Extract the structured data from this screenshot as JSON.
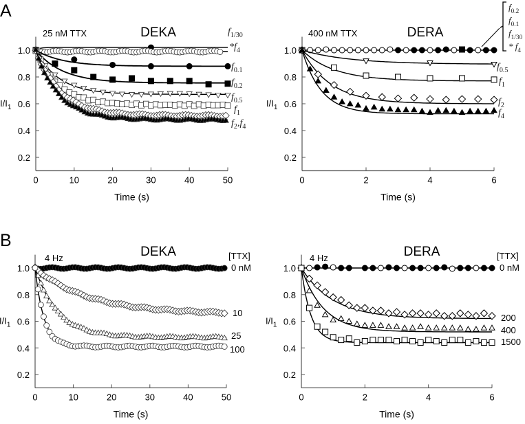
{
  "figure": {
    "panel_letters": [
      "A",
      "B"
    ]
  },
  "chart_data": [
    {
      "id": "A-DEKA",
      "type": "scatter",
      "title": "DEKA",
      "condition": "25 nM TTX",
      "xlabel": "Time (s)",
      "ylabel": "I/I",
      "ylabel_sub": "1",
      "xlim": [
        0,
        50
      ],
      "ylim": [
        0.1,
        1.1
      ],
      "xticks": [
        "0",
        "10",
        "20",
        "30",
        "40",
        "50"
      ],
      "xtick_values": [
        0,
        10,
        20,
        30,
        40,
        50
      ],
      "yticks": [
        "0.2",
        "0.4",
        "0.6",
        "0.8",
        "1.0"
      ],
      "ytick_values": [
        0.2,
        0.4,
        0.6,
        0.8,
        1.0
      ],
      "series": [
        {
          "name": "f1/30",
          "label": "f",
          "label_sub": "1/30",
          "marker": "circle-filled",
          "fit": {
            "plateau": 1.02,
            "tau": 1
          },
          "x": [
            0,
            30
          ],
          "y": [
            1.0,
            1.02
          ]
        },
        {
          "name": "*f4",
          "label": "*f",
          "label_sub": "4",
          "marker": "circle-open",
          "fit": {
            "plateau": 0.99,
            "tau": 1
          },
          "dense_step": 0.75,
          "x_end": 48
        },
        {
          "name": "f0.1",
          "label": "f",
          "label_sub": "0.1",
          "marker": "circle-filled",
          "fit": {
            "plateau": 0.88,
            "tau": 7
          },
          "x": [
            0,
            10,
            20,
            30,
            40,
            50
          ],
          "y": [
            1.0,
            0.93,
            0.89,
            0.88,
            0.88,
            0.88
          ]
        },
        {
          "name": "f0.2",
          "label": "f",
          "label_sub": "0.2",
          "marker": "square-filled",
          "fit": {
            "plateau": 0.755,
            "tau": 7
          },
          "x": [
            0,
            5,
            10,
            15,
            20,
            25,
            30,
            35,
            40,
            45,
            50
          ],
          "y": [
            1.0,
            0.9,
            0.85,
            0.8,
            0.78,
            0.79,
            0.77,
            0.77,
            0.77,
            0.745,
            0.75
          ]
        },
        {
          "name": "f0.5",
          "label": "f",
          "label_sub": "0.5",
          "marker": "tri-down-open",
          "fit": {
            "plateau": 0.67,
            "tau": 6
          },
          "dense_step": 2.5,
          "x_end": 50
        },
        {
          "name": "f1",
          "label": "f",
          "label_sub": "1",
          "marker": "square-open",
          "fit": {
            "plateau": 0.59,
            "tau": 6
          },
          "dense_step": 1.25,
          "x_end": 50
        },
        {
          "name": "f2",
          "label": "f",
          "label_sub": "2",
          "label2": "f",
          "label2_sub": "4",
          "marker": "diamond-open",
          "fit": {
            "plateau": 0.51,
            "tau": 6.5
          },
          "dense_step": 0.75,
          "x_end": 50
        },
        {
          "name": "f4",
          "marker": "tri-up-filled",
          "fit": {
            "plateau": 0.48,
            "tau": 6
          },
          "dense_step": 0.75,
          "x_end": 50
        }
      ]
    },
    {
      "id": "A-DERA",
      "type": "scatter",
      "title": "DERA",
      "condition": "400 nM TTX",
      "xlabel": "Time (s)",
      "ylabel": "I/I",
      "ylabel_sub": "1",
      "xlim": [
        0,
        6
      ],
      "ylim": [
        0.1,
        1.1
      ],
      "xticks": [
        "0",
        "2",
        "4",
        "6"
      ],
      "xtick_values": [
        0,
        2,
        4,
        6
      ],
      "yticks": [
        "0.2",
        "0.4",
        "0.6",
        "0.8",
        "1.0"
      ],
      "ytick_values": [
        0.2,
        0.4,
        0.6,
        0.8,
        1.0
      ],
      "bracket_labels": [
        {
          "label": "f",
          "label_sub": "0.2"
        },
        {
          "label": "f",
          "label_sub": "0.1"
        },
        {
          "label": "f",
          "label_sub": "1/30"
        },
        {
          "label": "* f",
          "label_sub": "4"
        }
      ],
      "series": [
        {
          "name": "flat-open",
          "marker": "circle-open",
          "fit": {
            "plateau": 1.0,
            "tau": 1
          },
          "x": [
            0,
            0.25,
            0.5,
            0.75,
            1,
            1.25,
            1.5,
            1.75,
            2,
            2.25,
            2.5,
            2.75,
            3.25,
            4,
            4.75,
            5.5
          ],
          "y": [
            1,
            1,
            1,
            1.005,
            1,
            1,
            1,
            1,
            1,
            1,
            1,
            1.005,
            1,
            1,
            1,
            1
          ]
        },
        {
          "name": "flat-filled",
          "marker": "circle-filled",
          "x": [
            3,
            3.5,
            3.75,
            4.25,
            4.5,
            5.25,
            5.75,
            6
          ],
          "y": [
            1,
            1,
            1,
            1,
            1.005,
            1,
            1,
            1
          ]
        },
        {
          "name": "flat-square",
          "marker": "square-filled",
          "x": [
            5
          ],
          "y": [
            1.005
          ]
        },
        {
          "name": "f0.5",
          "label": "f",
          "label_sub": "0.5",
          "marker": "tri-down-open",
          "fit": {
            "plateau": 0.895,
            "tau": 1.5
          },
          "x": [
            0,
            2,
            4,
            6
          ],
          "y": [
            1.0,
            0.92,
            0.905,
            0.895
          ]
        },
        {
          "name": "f1",
          "label": "f",
          "label_sub": "1",
          "marker": "square-open",
          "fit": {
            "plateau": 0.77,
            "tau": 1.0
          },
          "x": [
            0,
            1,
            2,
            3,
            4,
            5,
            6
          ],
          "y": [
            1.0,
            0.87,
            0.81,
            0.8,
            0.79,
            0.79,
            0.78
          ]
        },
        {
          "name": "f2",
          "label": "f",
          "label_sub": "2",
          "marker": "diamond-open",
          "fit": {
            "plateau": 0.6,
            "tau": 0.9
          },
          "x": [
            0,
            0.5,
            1,
            1.5,
            2,
            2.5,
            3,
            3.5,
            4,
            4.5,
            5,
            5.5,
            6
          ],
          "y": [
            1,
            0.82,
            0.74,
            0.69,
            0.66,
            0.65,
            0.64,
            0.645,
            0.635,
            0.63,
            0.635,
            0.635,
            0.63
          ]
        },
        {
          "name": "f4",
          "label": "f",
          "label_sub": "4",
          "marker": "tri-up-filled",
          "fit": {
            "plateau": 0.525,
            "tau": 0.6
          },
          "x": [
            0,
            0.25,
            0.5,
            0.75,
            1,
            1.25,
            1.5,
            1.75,
            2,
            2.25,
            2.5,
            2.75,
            3,
            3.25,
            3.5,
            3.75,
            4,
            4.25,
            4.5,
            4.75,
            5,
            5.25,
            5.5,
            5.75,
            6
          ],
          "y": [
            1,
            0.86,
            0.77,
            0.7,
            0.65,
            0.615,
            0.6,
            0.59,
            0.565,
            0.575,
            0.56,
            0.56,
            0.555,
            0.555,
            0.555,
            0.545,
            0.535,
            0.55,
            0.55,
            0.545,
            0.535,
            0.545,
            0.545,
            0.545,
            0.55
          ]
        }
      ]
    },
    {
      "id": "B-DEKA",
      "type": "scatter",
      "title": "DEKA",
      "condition": "4 Hz",
      "legend_title": "[TTX]",
      "xlabel": "Time (s)",
      "ylabel": "I/I",
      "ylabel_sub": "1",
      "xlim": [
        0,
        50
      ],
      "ylim": [
        0.1,
        1.1
      ],
      "xticks": [
        "0",
        "10",
        "20",
        "30",
        "40",
        "50"
      ],
      "xtick_values": [
        0,
        10,
        20,
        30,
        40,
        50
      ],
      "yticks": [
        "0.2",
        "0.4",
        "0.6",
        "0.8",
        "1.0"
      ],
      "ytick_values": [
        0.2,
        0.4,
        0.6,
        0.8,
        1.0
      ],
      "series": [
        {
          "name": "0 nM",
          "label": "0 nM",
          "marker": "circle-filled",
          "fit": {
            "plateau": 1.0,
            "tau": 1
          },
          "dense_step": 0.75,
          "x_end": 50
        },
        {
          "name": "10 nM",
          "label": "10",
          "marker": "diamond-open",
          "fit": {
            "plateau": 0.655,
            "tau": 14
          },
          "dense_step": 0.75,
          "x_end": 50
        },
        {
          "name": "25 nM",
          "label": "25",
          "marker": "tri-up-open",
          "fit": {
            "plateau": 0.48,
            "tau": 6
          },
          "dense_step": 0.75,
          "x_end": 50
        },
        {
          "name": "100 nM",
          "label": "100",
          "marker": "circle-open",
          "fit": {
            "plateau": 0.41,
            "tau": 2.3
          },
          "dense_step": 0.75,
          "x_end": 50
        }
      ]
    },
    {
      "id": "B-DERA",
      "type": "scatter",
      "title": "DERA",
      "condition": "4 Hz",
      "legend_title": "[TTX]",
      "xlabel": "Time (s)",
      "ylabel": "I/I",
      "ylabel_sub": "1",
      "xlim": [
        0,
        6
      ],
      "ylim": [
        0.1,
        1.1
      ],
      "xticks": [
        "0",
        "2",
        "4",
        "6"
      ],
      "xtick_values": [
        0,
        2,
        4,
        6
      ],
      "yticks": [
        "0.2",
        "0.4",
        "0.6",
        "0.8",
        "1.0"
      ],
      "ytick_values": [
        0.2,
        0.4,
        0.6,
        0.8,
        1.0
      ],
      "series": [
        {
          "name": "0 nM open",
          "label": "0 nM",
          "marker": "circle-open",
          "fit": {
            "plateau": 1.0,
            "tau": 1
          },
          "x": [
            0.25,
            1,
            2.5,
            3.25,
            4,
            4.75,
            5.5
          ],
          "y": [
            1,
            1.005,
            1,
            1,
            1,
            0.995,
            1
          ]
        },
        {
          "name": "0 nM filled",
          "marker": "circle-filled",
          "x": [
            0,
            0.5,
            0.75,
            1.25,
            1.5,
            2,
            2.25,
            2.75,
            3,
            3.5,
            3.75,
            4.25,
            4.5,
            5,
            5.25,
            5.75,
            6
          ],
          "y": [
            1,
            1.005,
            1.01,
            1,
            1,
            1,
            1,
            1.005,
            1,
            1,
            1,
            1,
            1.005,
            1,
            1,
            1,
            1
          ]
        },
        {
          "name": "200 nM",
          "label": "200",
          "marker": "diamond-open",
          "fit": {
            "plateau": 0.62,
            "tau": 1.0
          },
          "x": [
            0,
            0.25,
            0.5,
            0.75,
            1,
            1.25,
            1.5,
            1.75,
            2,
            2.25,
            2.5,
            2.75,
            3,
            3.25,
            3.5,
            3.75,
            4,
            4.25,
            4.5,
            4.75,
            5,
            5.25,
            5.5,
            5.75,
            6
          ],
          "y": [
            1,
            0.92,
            0.87,
            0.82,
            0.78,
            0.76,
            0.72,
            0.7,
            0.7,
            0.68,
            0.68,
            0.66,
            0.67,
            0.65,
            0.66,
            0.66,
            0.65,
            0.66,
            0.64,
            0.64,
            0.66,
            0.65,
            0.64,
            0.66,
            0.64
          ]
        },
        {
          "name": "400 nM",
          "label": "400",
          "marker": "tri-up-open",
          "fit": {
            "plateau": 0.52,
            "tau": 0.7
          },
          "x": [
            0,
            0.25,
            0.5,
            0.75,
            1,
            1.25,
            1.5,
            1.75,
            2,
            2.25,
            2.5,
            2.75,
            3,
            3.25,
            3.5,
            3.75,
            4,
            4.25,
            4.5,
            4.75,
            5,
            5.25,
            5.5,
            5.75,
            6
          ],
          "y": [
            1,
            0.83,
            0.72,
            0.65,
            0.61,
            0.62,
            0.6,
            0.58,
            0.57,
            0.57,
            0.57,
            0.56,
            0.56,
            0.55,
            0.55,
            0.56,
            0.55,
            0.55,
            0.55,
            0.55,
            0.55,
            0.54,
            0.54,
            0.55,
            0.55
          ]
        },
        {
          "name": "1500 nM",
          "label": "1500",
          "marker": "square-open",
          "fit": {
            "plateau": 0.44,
            "tau": 0.3
          },
          "x": [
            0,
            0.25,
            0.5,
            0.75,
            1,
            1.25,
            1.5,
            1.75,
            2,
            2.25,
            2.5,
            2.75,
            3,
            3.25,
            3.5,
            3.75,
            4,
            4.25,
            4.5,
            4.75,
            5,
            5.25,
            5.5,
            5.75,
            6
          ],
          "y": [
            1,
            0.7,
            0.56,
            0.52,
            0.48,
            0.46,
            0.47,
            0.44,
            0.45,
            0.46,
            0.46,
            0.46,
            0.45,
            0.46,
            0.45,
            0.44,
            0.46,
            0.45,
            0.44,
            0.46,
            0.46,
            0.44,
            0.45,
            0.44,
            0.44
          ]
        }
      ]
    }
  ]
}
